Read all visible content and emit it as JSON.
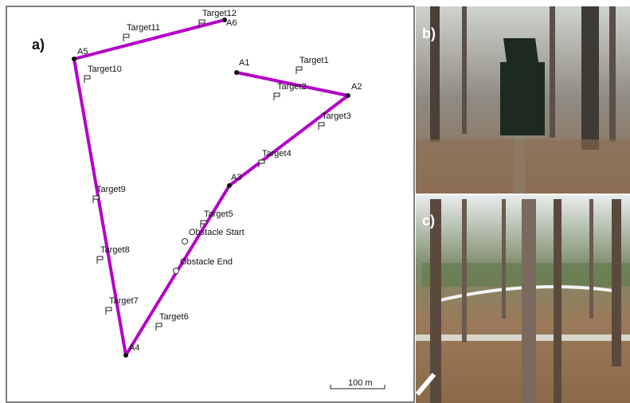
{
  "panels": {
    "a": {
      "label": "a)",
      "waypoints": [
        "A1",
        "A2",
        "A3",
        "A4",
        "A5",
        "A6"
      ],
      "targets": [
        "Target1",
        "Target2",
        "Target3",
        "Target4",
        "Target5",
        "Target6",
        "Target7",
        "Target8",
        "Target9",
        "Target10",
        "Target11",
        "Target12"
      ],
      "obstacles": [
        "Obstacle Start",
        "Obstacle End"
      ],
      "scale_bar": "100 m"
    },
    "b": {
      "label": "b)"
    },
    "c": {
      "label": "c)"
    }
  }
}
